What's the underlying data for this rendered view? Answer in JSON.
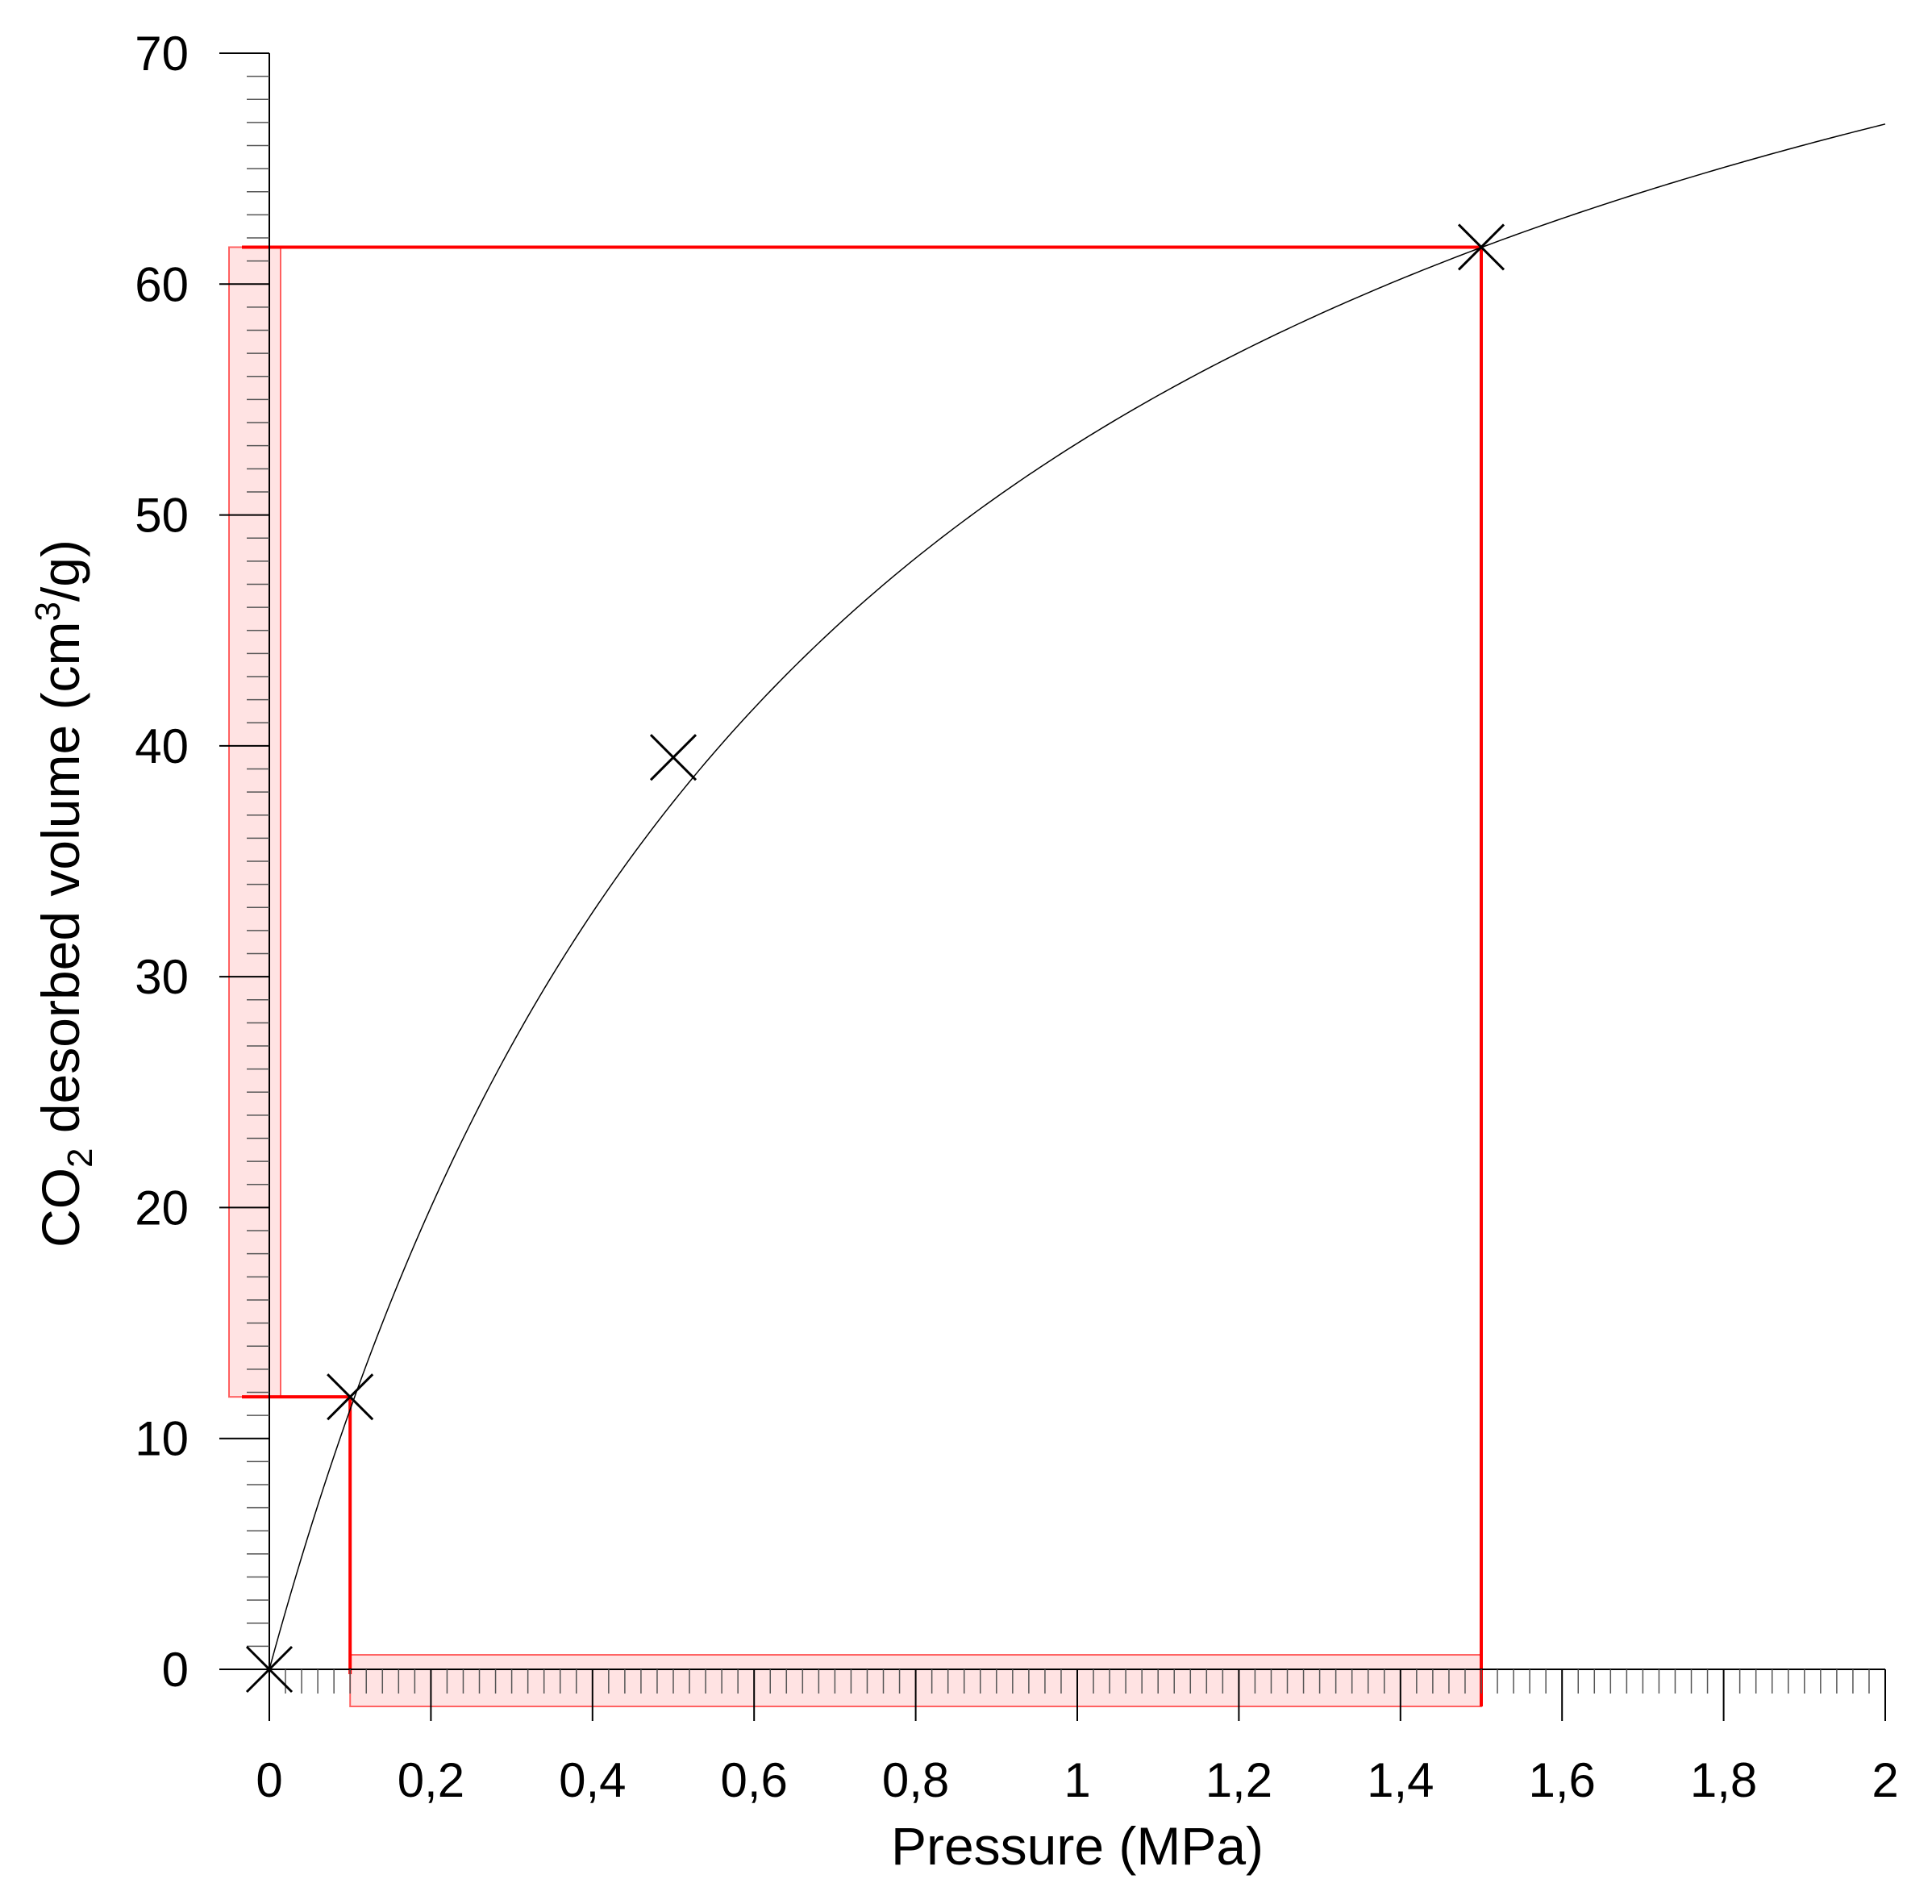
{
  "chart_data": {
    "type": "scatter",
    "title": "",
    "xlabel": "Pressure (MPa)",
    "ylabel_parts": {
      "prefix": "CO",
      "sub": "2",
      "middle": " desorbed volume (cm",
      "sup": "3",
      "suffix": "/g)"
    },
    "xlim": [
      0,
      2
    ],
    "ylim": [
      0,
      70
    ],
    "x_ticks": [
      {
        "value": 0,
        "label": "0"
      },
      {
        "value": 0.2,
        "label": "0,2"
      },
      {
        "value": 0.4,
        "label": "0,4"
      },
      {
        "value": 0.6,
        "label": "0,6"
      },
      {
        "value": 0.8,
        "label": "0,8"
      },
      {
        "value": 1,
        "label": "1"
      },
      {
        "value": 1.2,
        "label": "1,2"
      },
      {
        "value": 1.4,
        "label": "1,4"
      },
      {
        "value": 1.6,
        "label": "1,6"
      },
      {
        "value": 1.8,
        "label": "1,8"
      },
      {
        "value": 2,
        "label": "2"
      }
    ],
    "y_ticks": [
      {
        "value": 0,
        "label": "0"
      },
      {
        "value": 10,
        "label": "10"
      },
      {
        "value": 20,
        "label": "20"
      },
      {
        "value": 30,
        "label": "30"
      },
      {
        "value": 40,
        "label": "40"
      },
      {
        "value": 50,
        "label": "50"
      },
      {
        "value": 60,
        "label": "60"
      },
      {
        "value": 70,
        "label": "70"
      }
    ],
    "x_minor_step": 0.02,
    "y_minor_step": 1,
    "series": [
      {
        "marker": "x",
        "color": "#000000",
        "points": [
          {
            "x": 0,
            "y": 0
          },
          {
            "x": 0.1,
            "y": 11.8
          },
          {
            "x": 0.5,
            "y": 39.5
          },
          {
            "x": 1.5,
            "y": 61.6
          }
        ]
      }
    ],
    "fit_curve": {
      "model": "langmuir",
      "vmax": 90.5,
      "b": 1.42,
      "x_range": [
        0,
        2
      ],
      "color": "#000000"
    },
    "annotations": {
      "color": "#ff0000",
      "shade_color": "#ffcccc",
      "lower": {
        "x": 0.1,
        "y": 11.8
      },
      "upper": {
        "x": 1.5,
        "y": 61.6
      }
    },
    "grid": false,
    "legend": "none"
  }
}
